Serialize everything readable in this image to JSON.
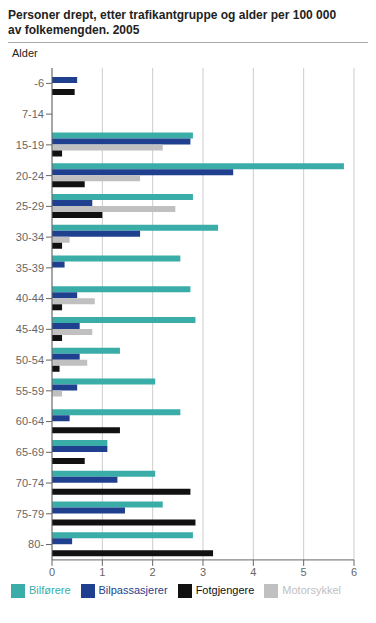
{
  "chart_data": {
    "type": "bar",
    "orientation": "horizontal",
    "title": "Personer drept, etter trafikantgruppe og alder per 100 000",
    "subtitle": "av folkemengden. 2005",
    "y_label": "Alder",
    "categories": [
      "-6",
      "7-14",
      "15-19",
      "20-24",
      "25-29",
      "30-34",
      "35-39",
      "40-44",
      "45-49",
      "50-54",
      "55-59",
      "60-64",
      "65-69",
      "70-74",
      "75-79",
      "80-"
    ],
    "series": [
      {
        "name": "Bilførere",
        "color": "#3aada8",
        "values": [
          0.0,
          0.0,
          2.8,
          5.8,
          2.8,
          3.3,
          2.55,
          2.75,
          2.85,
          1.35,
          2.05,
          2.55,
          1.1,
          2.05,
          2.2,
          2.8
        ]
      },
      {
        "name": "Bilpassasjerer",
        "color": "#1f3f8f",
        "values": [
          0.5,
          0.0,
          2.75,
          3.6,
          0.8,
          1.75,
          0.25,
          0.5,
          0.55,
          0.55,
          0.5,
          0.35,
          1.1,
          1.3,
          1.45,
          0.4
        ]
      },
      {
        "name": "Motorsykkel",
        "color": "#c0c0c0",
        "values": [
          0.0,
          0.0,
          2.2,
          1.75,
          2.45,
          0.35,
          0.0,
          0.85,
          0.8,
          0.7,
          0.2,
          0.0,
          0.0,
          0.0,
          0.0,
          0.0
        ]
      },
      {
        "name": "Fotgjengere",
        "color": "#111111",
        "values": [
          0.45,
          0.0,
          0.2,
          0.65,
          1.0,
          0.2,
          0.0,
          0.2,
          0.2,
          0.15,
          0.0,
          1.35,
          0.65,
          2.75,
          2.85,
          3.2
        ]
      }
    ],
    "xlim": [
      0,
      6
    ],
    "xticks": [
      0,
      1,
      2,
      3,
      4,
      5,
      6
    ],
    "grid": true,
    "legend": "bottom"
  }
}
